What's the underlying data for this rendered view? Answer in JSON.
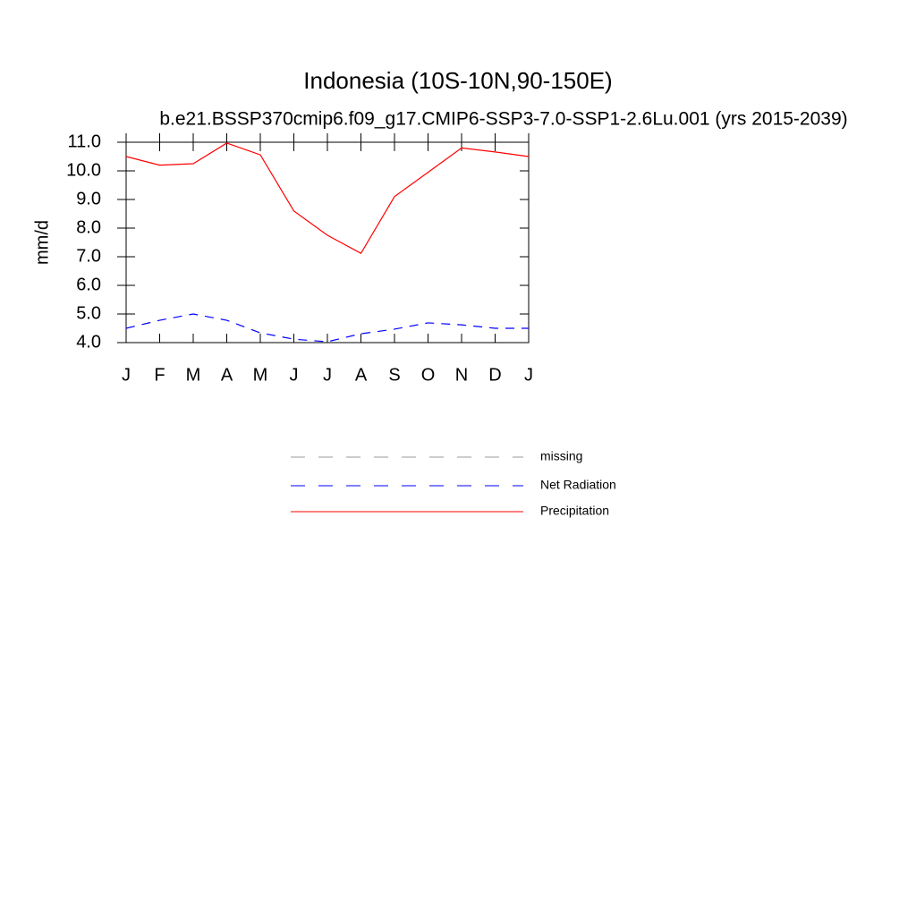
{
  "chart_data": {
    "type": "line",
    "title": "Indonesia (10S-10N,90-150E)",
    "subtitle": "b.e21.BSSP370cmip6.f09_g17.CMIP6-SSP3-7.0-SSP1-2.6Lu.001 (yrs 2015-2039)",
    "y_label": "mm/d",
    "categories": [
      "J",
      "F",
      "M",
      "A",
      "M",
      "J",
      "J",
      "A",
      "S",
      "O",
      "N",
      "D",
      "J"
    ],
    "series": [
      {
        "name": "missing",
        "color": "#999999",
        "dash": true,
        "values": [
          null,
          null,
          null,
          null,
          null,
          null,
          null,
          null,
          null,
          null,
          null,
          null,
          null
        ]
      },
      {
        "name": "Net Radiation",
        "color": "#0000ff",
        "dash": true,
        "values": [
          4.5,
          4.78,
          5.0,
          4.78,
          4.34,
          4.12,
          4.03,
          4.31,
          4.47,
          4.69,
          4.62,
          4.5,
          4.5
        ]
      },
      {
        "name": "Precipitation",
        "color": "#ff0000",
        "dash": false,
        "values": [
          10.5,
          10.2,
          10.25,
          10.97,
          10.56,
          8.6,
          7.75,
          7.12,
          9.1,
          9.95,
          10.8,
          10.66,
          10.5
        ]
      }
    ],
    "ylim": [
      4.0,
      11.0
    ],
    "yticks": [
      {
        "value": 4,
        "label": "4.0"
      },
      {
        "value": 5,
        "label": "5.0"
      },
      {
        "value": 6,
        "label": "6.0"
      },
      {
        "value": 7,
        "label": "7.0"
      },
      {
        "value": 8,
        "label": "8.0"
      },
      {
        "value": 9,
        "label": "9.0"
      },
      {
        "value": 10,
        "label": "10.0"
      },
      {
        "value": 11,
        "label": "11.0"
      }
    ]
  }
}
